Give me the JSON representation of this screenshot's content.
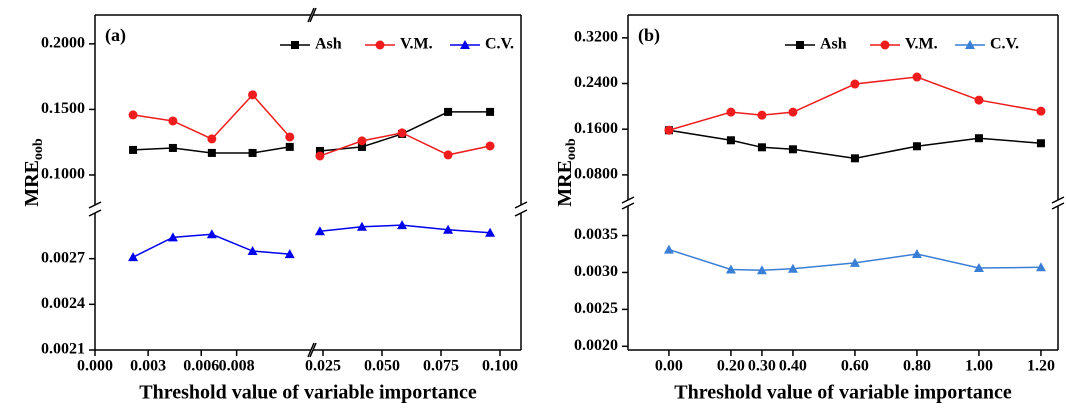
{
  "chart_data": [
    {
      "type": "line",
      "panel_label": "(a)",
      "x_label": "Threshold value of variable importance",
      "y_label": "MRE",
      "y_label_sub": "oob",
      "x": [
        0.00215,
        0.0044,
        0.0066,
        0.0089,
        0.011,
        0.0237,
        0.0415,
        0.0585,
        0.078,
        0.0958
      ],
      "xlim": [
        [
          0,
          0.0122
        ],
        [
          0.02076,
          0.1089
        ]
      ],
      "xticks": [
        {
          "value": 0,
          "label": "0.000"
        },
        0.003,
        0.006,
        0.008,
        0.025,
        {
          "value": 0.05,
          "label": "0.050"
        },
        0.075,
        {
          "value": 0.1,
          "label": "0.100"
        }
      ],
      "ylim": [
        [
          0.0021,
          0.003
        ],
        [
          0.0771,
          0.222
        ]
      ],
      "yticks": [
        0.0021,
        0.0024,
        0.0027,
        {
          "value": 0.1,
          "label": "0.1000"
        },
        {
          "value": 0.15,
          "label": "0.1500"
        },
        {
          "value": 0.2,
          "label": "0.2000"
        }
      ],
      "series": [
        {
          "name": "Ash",
          "color": "#000000",
          "marker": "square",
          "y_range": 1,
          "values": [
            0.1191,
            0.1206,
            0.1168,
            0.1168,
            0.1214,
            0.1183,
            0.1214,
            0.1313,
            0.1481,
            0.1481
          ]
        },
        {
          "name": "V.M.",
          "color": "#ee1c1c",
          "marker": "circle",
          "y_range": 1,
          "values": [
            0.1458,
            0.1412,
            0.1275,
            0.1611,
            0.129,
            0.1145,
            0.126,
            0.1321,
            0.1153,
            0.1221
          ]
        },
        {
          "name": "C.V.",
          "color": "#0000ee",
          "marker": "triangle",
          "y_range": 0,
          "values": [
            0.00271,
            0.00284,
            0.00286,
            0.00275,
            0.00273,
            0.00288,
            0.00291,
            0.00292,
            0.00289,
            0.00287
          ]
        }
      ]
    },
    {
      "type": "line",
      "panel_label": "(b)",
      "x_label": "Threshold value of variable importance",
      "y_label": "MRE",
      "y_label_sub": "oob",
      "x": [
        0,
        0.2,
        0.3,
        0.4,
        0.6,
        0.8,
        1.0,
        1.2
      ],
      "xlim": [
        [
          -0.132,
          1.255
        ]
      ],
      "xticks": [
        {
          "value": 0,
          "label": "0.00"
        },
        {
          "value": 0.2,
          "label": "0.20"
        },
        {
          "value": 0.3,
          "label": "0.30"
        },
        {
          "value": 0.4,
          "label": "0.40"
        },
        {
          "value": 0.6,
          "label": "0.60"
        },
        {
          "value": 0.8,
          "label": "0.80"
        },
        {
          "value": 1.0,
          "label": "1.00"
        },
        {
          "value": 1.2,
          "label": "1.20"
        }
      ],
      "ylim": [
        [
          0.00195,
          0.0039
        ],
        [
          0.036,
          0.36
        ]
      ],
      "yticks": [
        {
          "value": 0.002,
          "label": "0.0020"
        },
        0.0025,
        {
          "value": 0.003,
          "label": "0.0030"
        },
        0.0035,
        {
          "value": 0.08,
          "label": "0.0800"
        },
        {
          "value": 0.16,
          "label": "0.1600"
        },
        {
          "value": 0.24,
          "label": "0.2400"
        },
        {
          "value": 0.32,
          "label": "0.3200"
        }
      ],
      "series": [
        {
          "name": "Ash",
          "color": "#000000",
          "marker": "square",
          "y_range": 1,
          "values": [
            0.1582,
            0.1406,
            0.1283,
            0.1248,
            0.109,
            0.1301,
            0.1442,
            0.1354
          ]
        },
        {
          "name": "V.M.",
          "color": "#ee1c1c",
          "marker": "circle",
          "y_range": 1,
          "values": [
            0.1582,
            0.1899,
            0.1846,
            0.1899,
            0.2391,
            0.2514,
            0.211,
            0.1916
          ]
        },
        {
          "name": "C.V.",
          "color": "#3a7fd5",
          "marker": "triangle",
          "y_range": 0,
          "values": [
            0.00331,
            0.00304,
            0.00303,
            0.00305,
            0.00313,
            0.00325,
            0.00306,
            0.00307
          ]
        }
      ]
    }
  ]
}
